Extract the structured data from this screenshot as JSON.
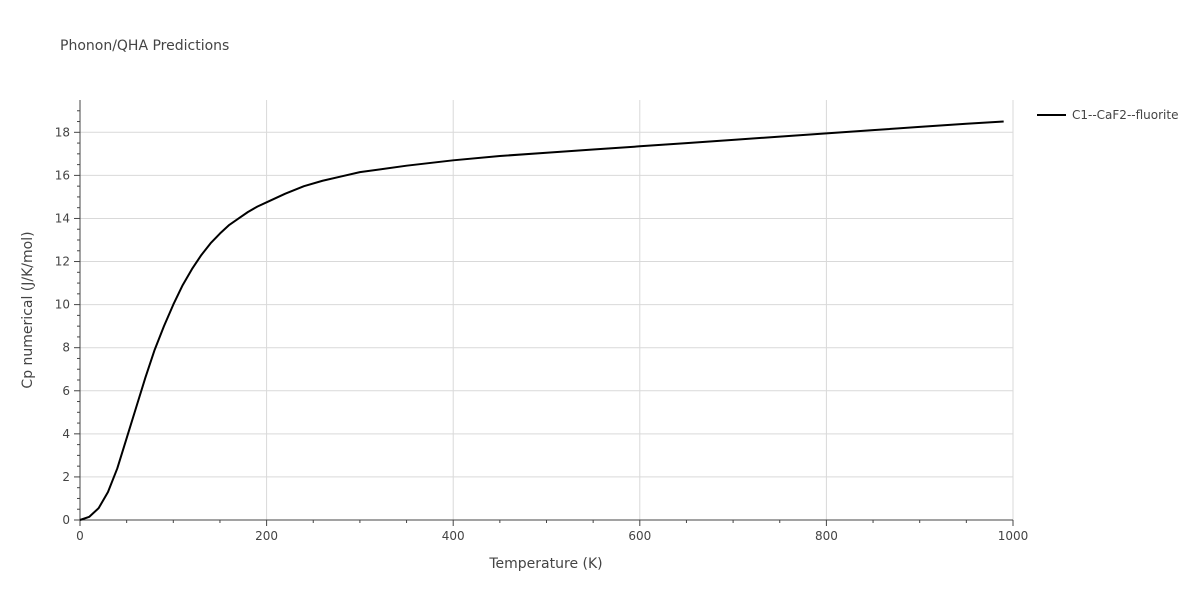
{
  "chart_data": {
    "type": "line",
    "title": "Phonon/QHA Predictions",
    "xlabel": "Temperature (K)",
    "ylabel": "Cp numerical (J/K/mol)",
    "xlim": [
      0,
      1000
    ],
    "ylim": [
      0,
      19.5
    ],
    "xticks": [
      0,
      200,
      400,
      600,
      800,
      1000
    ],
    "yticks": [
      0,
      2,
      4,
      6,
      8,
      10,
      12,
      14,
      16,
      18
    ],
    "xtick_labels": [
      "0",
      "200",
      "400",
      "600",
      "800",
      "1000"
    ],
    "ytick_labels": [
      "0",
      "2",
      "4",
      "6",
      "8",
      "10",
      "12",
      "14",
      "16",
      "18"
    ],
    "grid": true,
    "legend_position": "top-right-outside",
    "series": [
      {
        "name": "C1--CaF2--fluorite",
        "color": "#000000",
        "x": [
          0,
          10,
          20,
          30,
          40,
          50,
          60,
          70,
          80,
          90,
          100,
          110,
          120,
          130,
          140,
          150,
          160,
          170,
          180,
          190,
          200,
          220,
          240,
          260,
          280,
          300,
          350,
          400,
          450,
          500,
          550,
          600,
          650,
          700,
          750,
          800,
          850,
          900,
          950,
          990
        ],
        "y": [
          0,
          0.15,
          0.55,
          1.3,
          2.4,
          3.8,
          5.2,
          6.6,
          7.9,
          9.0,
          10.0,
          10.9,
          11.65,
          12.3,
          12.85,
          13.3,
          13.7,
          14.0,
          14.3,
          14.55,
          14.75,
          15.15,
          15.5,
          15.75,
          15.95,
          16.15,
          16.45,
          16.7,
          16.9,
          17.05,
          17.2,
          17.35,
          17.5,
          17.65,
          17.8,
          17.95,
          18.1,
          18.25,
          18.4,
          18.5
        ]
      }
    ]
  }
}
